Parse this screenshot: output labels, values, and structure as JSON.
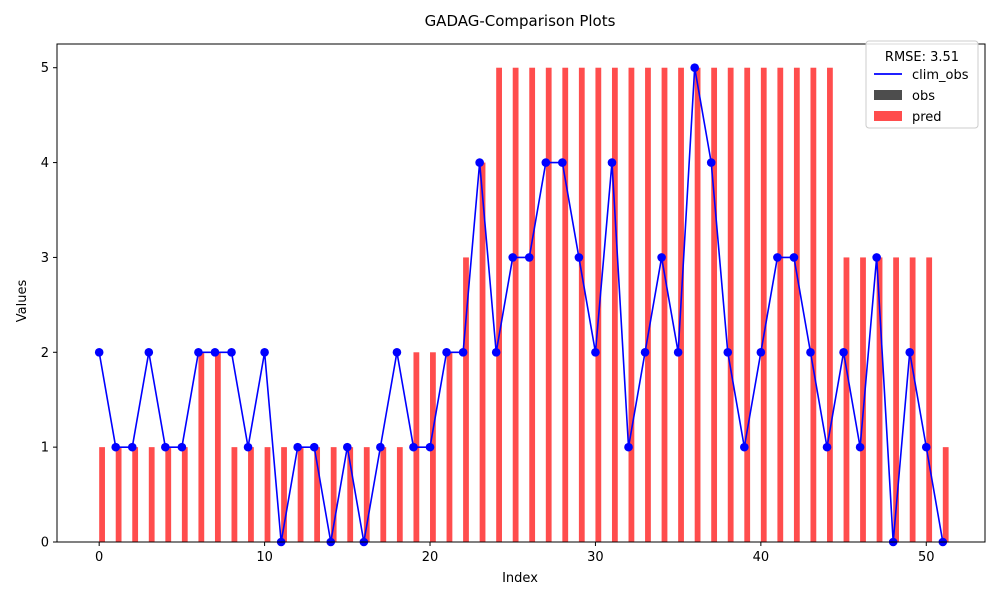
{
  "chart_data": {
    "type": "bar",
    "title": "GADAG-Comparison Plots",
    "xlabel": "Index",
    "ylabel": "Values",
    "xlim": [
      -2.55,
      53.55
    ],
    "ylim": [
      0,
      5.25
    ],
    "x_ticks": [
      0,
      10,
      20,
      30,
      40,
      50
    ],
    "y_ticks": [
      0,
      1,
      2,
      3,
      4,
      5
    ],
    "grid": false,
    "legend": {
      "placement": "top-right",
      "title": "RMSE: 3.51",
      "entries": [
        {
          "label": "clim_obs",
          "kind": "line",
          "color": "#0000ff"
        },
        {
          "label": "obs",
          "kind": "bar",
          "color": "#4d4d4d"
        },
        {
          "label": "pred",
          "kind": "bar",
          "color": "#ff4d4d"
        }
      ]
    },
    "x": [
      0,
      1,
      2,
      3,
      4,
      5,
      6,
      7,
      8,
      9,
      10,
      11,
      12,
      13,
      14,
      15,
      16,
      17,
      18,
      19,
      20,
      21,
      22,
      23,
      24,
      25,
      26,
      27,
      28,
      29,
      30,
      31,
      32,
      33,
      34,
      35,
      36,
      37,
      38,
      39,
      40,
      41,
      42,
      43,
      44,
      45,
      46,
      47,
      48,
      49,
      50,
      51
    ],
    "series": [
      {
        "name": "clim_obs",
        "kind": "line",
        "color": "#0000ff",
        "values": [
          2,
          1,
          1,
          2,
          1,
          1,
          2,
          2,
          2,
          1,
          2,
          0,
          1,
          1,
          0,
          1,
          0,
          1,
          2,
          1,
          1,
          2,
          2,
          4,
          2,
          3,
          3,
          4,
          4,
          3,
          2,
          4,
          1,
          2,
          3,
          2,
          5,
          4,
          2,
          1,
          2,
          3,
          3,
          2,
          1,
          2,
          1,
          3,
          0,
          2,
          1,
          0
        ]
      },
      {
        "name": "obs",
        "kind": "bar",
        "color": "#4d4d4d",
        "values": [
          0,
          0,
          0,
          0,
          0,
          0,
          0,
          0,
          0,
          0,
          0,
          0,
          0,
          0,
          0,
          0,
          0,
          0,
          0,
          0,
          0,
          0,
          0,
          0,
          0,
          0,
          0,
          0,
          0,
          0,
          0,
          0,
          0,
          0,
          0,
          0,
          0,
          0,
          0,
          0,
          0,
          0,
          0,
          0,
          0,
          0,
          0,
          0,
          0,
          0,
          0,
          0
        ]
      },
      {
        "name": "pred",
        "kind": "bar",
        "color": "#ff4d4d",
        "values": [
          1,
          1,
          1,
          1,
          1,
          1,
          2,
          2,
          1,
          1,
          1,
          1,
          1,
          1,
          1,
          1,
          1,
          1,
          1,
          2,
          2,
          2,
          3,
          4,
          5,
          5,
          5,
          5,
          5,
          5,
          5,
          5,
          5,
          5,
          5,
          5,
          5,
          5,
          5,
          5,
          5,
          5,
          5,
          5,
          5,
          3,
          3,
          3,
          3,
          3,
          3,
          1
        ]
      }
    ]
  }
}
